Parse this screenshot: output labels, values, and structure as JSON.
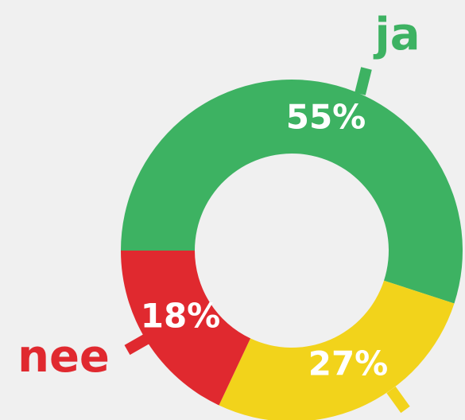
{
  "chart_data": {
    "type": "donut",
    "categories": [
      "ja",
      null,
      "nee"
    ],
    "values": [
      55,
      27,
      18
    ],
    "value_labels": [
      "55%",
      "27%",
      "18%"
    ],
    "colors": [
      "#3db262",
      "#f2d31b",
      "#e0292f"
    ]
  }
}
